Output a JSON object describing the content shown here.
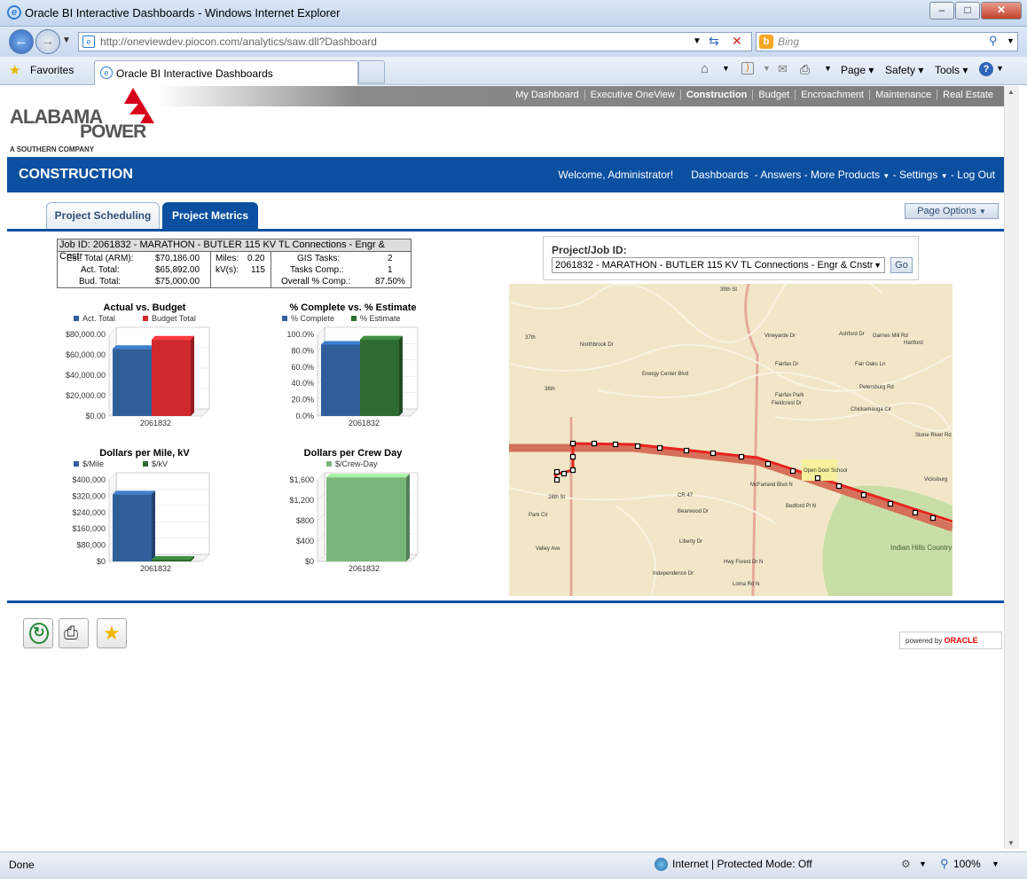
{
  "window": {
    "title": "Oracle BI Interactive Dashboards - Windows Internet Explorer",
    "address": "http://oneviewdev.piocon.com/analytics/saw.dll?Dashboard",
    "search_placeholder": "Bing",
    "favorites": "Favorites",
    "tab_title": "Oracle BI Interactive Dashboards",
    "commands": {
      "page": "Page",
      "safety": "Safety",
      "tools": "Tools"
    }
  },
  "top_nav": [
    "My Dashboard",
    "Executive OneView",
    "Construction",
    "Budget",
    "Encroachment",
    "Maintenance",
    "Real Estate"
  ],
  "logo": {
    "line1": "ALABAMA",
    "line2": "POWER",
    "line3": "A SOUTHERN COMPANY"
  },
  "header": {
    "title": "CONSTRUCTION",
    "welcome": "Welcome, Administrator!",
    "dashboards": "Dashboards",
    "answers": "- Answers",
    "more_products": "- More Products",
    "settings": "- Settings",
    "logout": "- Log Out"
  },
  "tabs": {
    "scheduling": "Project Scheduling",
    "metrics": "Project Metrics"
  },
  "page_options": "Page Options",
  "job": {
    "header": "Job ID:  2061832 - MARATHON - BUTLER 115 KV TL Connections - Engr & Cnstr",
    "est_label": "Est. Total (ARM):",
    "est_value": "$70,186.00",
    "act_label": "Act. Total:",
    "act_value": "$65,892.00",
    "bud_label": "Bud. Total:",
    "bud_value": "$75,000.00",
    "miles_label": "Miles:",
    "miles_value": "0.20",
    "kv_label": "kV(s):",
    "kv_value": "115",
    "gis_label": "GIS Tasks:",
    "gis_value": "2",
    "tasks_label": "Tasks Comp.:",
    "tasks_value": "1",
    "overall_label": "Overall % Comp.:",
    "overall_value": "87.50%"
  },
  "chart_data": [
    {
      "type": "bar",
      "title": "Actual vs. Budget",
      "categories": [
        "2061832"
      ],
      "series": [
        {
          "name": "Act. Total",
          "values": [
            65892
          ]
        },
        {
          "name": "Budget Total",
          "values": [
            75000
          ]
        }
      ],
      "yticks": [
        "$80,000.00",
        "$60,000.00",
        "$40,000.00",
        "$20,000.00",
        "$0.00"
      ],
      "ylim": [
        0,
        80000
      ],
      "colors": [
        "#2f5f9a",
        "#d0282c"
      ]
    },
    {
      "type": "bar",
      "title": "% Complete vs. % Estimate",
      "categories": [
        "2061832"
      ],
      "series": [
        {
          "name": "% Complete",
          "values": [
            87.5
          ]
        },
        {
          "name": "% Estimate",
          "values": [
            93.9
          ]
        }
      ],
      "yticks": [
        "100.0%",
        "80.0%",
        "60.0%",
        "40.0%",
        "20.0%",
        "0.0%"
      ],
      "ylim": [
        0,
        100
      ],
      "colors": [
        "#2f5f9a",
        "#2e6b30"
      ]
    },
    {
      "type": "bar",
      "title": "Dollars per Mile, kV",
      "categories": [
        "2061832"
      ],
      "series": [
        {
          "name": "$/Mile",
          "values": [
            329460
          ]
        },
        {
          "name": "$/kV",
          "values": [
            573
          ]
        }
      ],
      "yticks": [
        "$400,000",
        "$320,000",
        "$240,000",
        "$160,000",
        "$80,000",
        "$0"
      ],
      "ylim": [
        0,
        400000
      ],
      "colors": [
        "#2f5f9a",
        "#2e6b30"
      ]
    },
    {
      "type": "bar",
      "title": "Dollars per Crew Day",
      "categories": [
        "2061832"
      ],
      "series": [
        {
          "name": "$/Crew-Day",
          "values": [
            1650
          ]
        }
      ],
      "yticks": [
        "$1,600",
        "$1,200",
        "$800",
        "$400",
        "$0"
      ],
      "ylim": [
        0,
        1600
      ],
      "colors": [
        "#7ab57a"
      ]
    }
  ],
  "project": {
    "label": "Project/Job ID:",
    "selected": "2061832 - MARATHON - BUTLER 115 KV TL Connections - Engr & Cnstr",
    "go": "Go"
  },
  "map_labels": [
    "39th St",
    "Vineyarde Dr",
    "Ashford Dr",
    "Garnes Mill Rd",
    "Hartford",
    "Energy Center Blvd",
    "Fairfax Dr",
    "Fair Oaks Ln",
    "Petersburg Rd",
    "Fairfax Park",
    "Chickamauga Cir",
    "Fieldcrest Dr",
    "Stone River Rd",
    "37th",
    "36th",
    "Northbrook Dr",
    "Open Door School",
    "McFarland Blvd N",
    "Vicksburg",
    "28th St",
    "CR 47",
    "Bearwood Dr",
    "Liberty Dr",
    "Bedford Pl N",
    "Indian Hills Country Club",
    "Independence Dr",
    "Hwy Forest Dr N",
    "Loma Rd N",
    "Park Cir",
    "Valley Ave"
  ],
  "powered": "powered by",
  "oracle": "ORACLE",
  "status": {
    "done": "Done",
    "zone": "Internet | Protected Mode: Off",
    "zoom": "100%"
  }
}
